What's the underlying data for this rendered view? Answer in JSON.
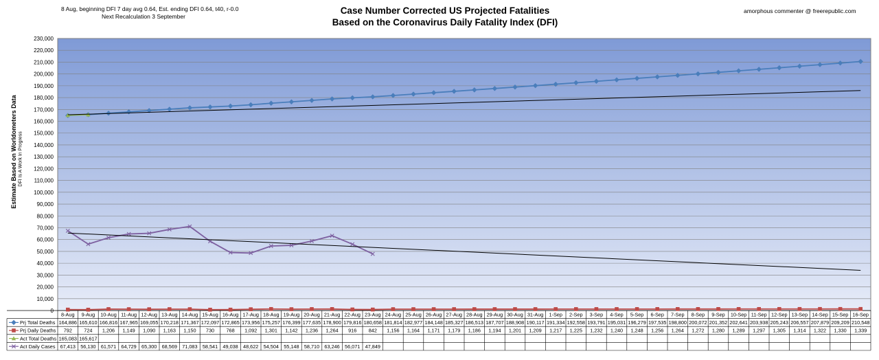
{
  "header": {
    "left_line1": "8 Aug, beginning DFI  7 day avg 0.64, Est. ending DFI  0.64,  t40, r-0.0",
    "left_line2": "Next Recalculation 3 September",
    "title_line1": "Case Number Corrected US Projected Fatalities",
    "title_line2": "Based on the Coronavirus Daily Fatality Index (DFI)",
    "right": "amorphous commenter  @  freerepublic.com"
  },
  "colors": {
    "plot_top": "#7f9ad6",
    "plot_bottom": "#e7ecf8",
    "prj_total": "#4a7ebb",
    "prj_daily": "#be4b48",
    "act_total": "#98b954",
    "act_daily": "#7d60a0",
    "trendline": "#000000"
  },
  "chart_data": {
    "type": "line",
    "title": "Case Number Corrected US Projected Fatalities Based on the Coronavirus Daily Fatality Index (DFI)",
    "ylabel": "Estimate Based on Worldometers Data",
    "ylabel_sub": "DFI Is A Work In Progress",
    "ylim": [
      0,
      230000
    ],
    "ytick_step": 10000,
    "grid": true,
    "legend": "data table",
    "categories": [
      "8-Aug",
      "9-Aug",
      "10-Aug",
      "11-Aug",
      "12-Aug",
      "13-Aug",
      "14-Aug",
      "15-Aug",
      "16-Aug",
      "17-Aug",
      "18-Aug",
      "19-Aug",
      "20-Aug",
      "21-Aug",
      "22-Aug",
      "23-Aug",
      "24-Aug",
      "25-Aug",
      "26-Aug",
      "27-Aug",
      "28-Aug",
      "29-Aug",
      "30-Aug",
      "31-Aug",
      "1-Sep",
      "2-Sep",
      "3-Sep",
      "4-Sep",
      "5-Sep",
      "6-Sep",
      "7-Sep",
      "8-Sep",
      "9-Sep",
      "10-Sep",
      "11-Sep",
      "12-Sep",
      "13-Sep",
      "14-Sep",
      "15-Sep",
      "16-Sep"
    ],
    "series": [
      {
        "name": "Prj Total Deaths",
        "marker": "diamond",
        "color_key": "prj_total",
        "values": [
          164886,
          165610,
          166816,
          167965,
          169055,
          170218,
          171367,
          172097,
          172865,
          173956,
          175257,
          176399,
          177635,
          178900,
          179816,
          180658,
          181814,
          182977,
          184148,
          185327,
          186513,
          187707,
          188908,
          190117,
          191334,
          192558,
          193791,
          195031,
          196279,
          197535,
          198800,
          200072,
          201352,
          202641,
          203938,
          205243,
          206557,
          207879,
          209209,
          210548
        ]
      },
      {
        "name": "Prj Daily Deaths",
        "marker": "square",
        "color_key": "prj_daily",
        "values": [
          792,
          724,
          1206,
          1149,
          1090,
          1163,
          1150,
          730,
          768,
          1092,
          1301,
          1142,
          1236,
          1264,
          916,
          842,
          1156,
          1164,
          1171,
          1179,
          1186,
          1194,
          1201,
          1209,
          1217,
          1225,
          1232,
          1240,
          1248,
          1256,
          1264,
          1272,
          1280,
          1289,
          1297,
          1305,
          1314,
          1322,
          1330,
          1339
        ]
      },
      {
        "name": "Act Total Deaths",
        "marker": "triangle",
        "color_key": "act_total",
        "values": [
          165083,
          165617,
          null,
          null,
          null,
          null,
          null,
          null,
          null,
          null,
          null,
          null,
          null,
          null,
          null,
          null,
          null,
          null,
          null,
          null,
          null,
          null,
          null,
          null,
          null,
          null,
          null,
          null,
          null,
          null,
          null,
          null,
          null,
          null,
          null,
          null,
          null,
          null,
          null,
          null
        ]
      },
      {
        "name": "Act Daily Cases",
        "marker": "x",
        "color_key": "act_daily",
        "values": [
          67413,
          56130,
          61571,
          64729,
          65300,
          68569,
          71083,
          58541,
          49038,
          48622,
          54504,
          55148,
          58710,
          63246,
          56071,
          47849,
          null,
          null,
          null,
          null,
          null,
          null,
          null,
          null,
          null,
          null,
          null,
          null,
          null,
          null,
          null,
          null,
          null,
          null,
          null,
          null,
          null,
          null,
          null,
          null
        ]
      }
    ],
    "trendlines": [
      {
        "of": "Prj Total Deaths",
        "from": [
          0,
          165500
        ],
        "to": [
          39,
          186000
        ]
      },
      {
        "of": "Act Daily Cases",
        "from": [
          0,
          65500
        ],
        "to": [
          39,
          34000
        ]
      }
    ]
  }
}
